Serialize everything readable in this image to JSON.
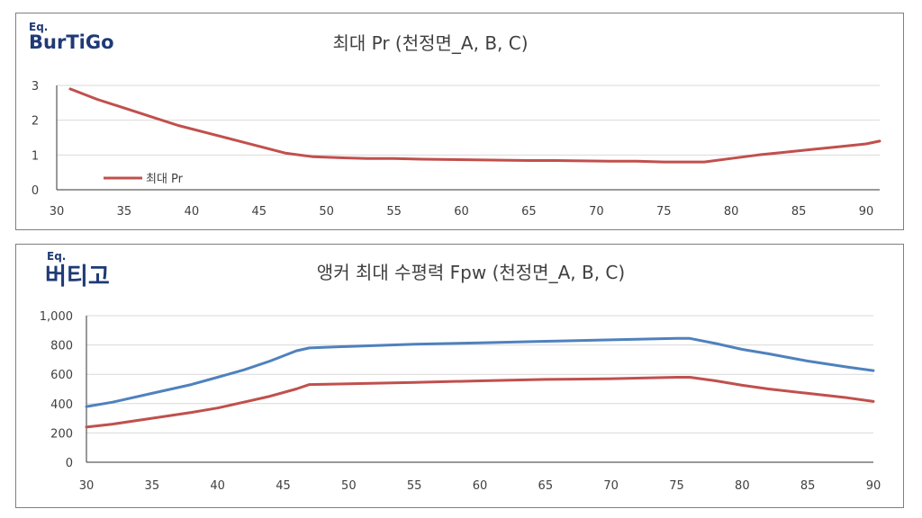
{
  "colors": {
    "red_series": "#c0504d",
    "blue_series": "#4f81bd",
    "logo": "#1f3a75"
  },
  "chart_data": [
    {
      "type": "line",
      "logo_eq": "Eq.",
      "logo_main": "BurTiGo",
      "title": "최대 Pr (천정면_A, B, C)",
      "xlabel": "",
      "ylabel": "",
      "xlim": [
        30,
        91
      ],
      "ylim": [
        0,
        3
      ],
      "x_ticks": [
        30,
        35,
        40,
        45,
        50,
        55,
        60,
        65,
        70,
        75,
        80,
        85,
        90
      ],
      "y_ticks": [
        "0",
        "1",
        "2",
        "3"
      ],
      "legend": "bottom-left",
      "grid": true,
      "x": [
        31,
        33,
        35,
        37,
        39,
        41,
        43,
        45,
        47,
        49,
        51,
        53,
        55,
        57,
        59,
        61,
        63,
        65,
        67,
        69,
        71,
        73,
        75,
        77,
        78,
        80,
        82,
        84,
        86,
        88,
        90,
        91
      ],
      "series": [
        {
          "name": "최대 Pr",
          "color": "#c0504d",
          "values": [
            2.9,
            2.6,
            2.35,
            2.1,
            1.85,
            1.65,
            1.45,
            1.25,
            1.05,
            0.95,
            0.92,
            0.9,
            0.9,
            0.88,
            0.87,
            0.86,
            0.85,
            0.84,
            0.84,
            0.83,
            0.82,
            0.82,
            0.8,
            0.8,
            0.8,
            0.9,
            1.0,
            1.08,
            1.16,
            1.24,
            1.32,
            1.4
          ]
        }
      ]
    },
    {
      "type": "line",
      "logo_eq": "Eq.",
      "logo_main": "버티고",
      "title": "앵커 최대 수평력 Fpw (천정면_A, B, C)",
      "xlabel": "",
      "ylabel": "",
      "xlim": [
        30,
        90
      ],
      "ylim": [
        0,
        1000
      ],
      "x_ticks": [
        30,
        35,
        40,
        45,
        50,
        55,
        60,
        65,
        70,
        75,
        80,
        85,
        90
      ],
      "y_ticks": [
        "0",
        "200",
        "400",
        "600",
        "800",
        "1,000"
      ],
      "grid": true,
      "x": [
        30,
        32,
        35,
        38,
        40,
        42,
        44,
        46,
        47,
        50,
        55,
        60,
        65,
        70,
        75,
        76,
        78,
        80,
        82,
        85,
        88,
        90
      ],
      "series": [
        {
          "name": "",
          "color": "#4f81bd",
          "values": [
            380,
            410,
            470,
            530,
            580,
            630,
            690,
            760,
            780,
            790,
            805,
            815,
            825,
            835,
            845,
            845,
            810,
            770,
            740,
            690,
            650,
            625
          ]
        },
        {
          "name": "",
          "color": "#c0504d",
          "values": [
            240,
            260,
            300,
            340,
            370,
            410,
            450,
            500,
            530,
            535,
            545,
            555,
            565,
            570,
            580,
            580,
            555,
            525,
            500,
            470,
            440,
            415
          ]
        }
      ]
    }
  ]
}
